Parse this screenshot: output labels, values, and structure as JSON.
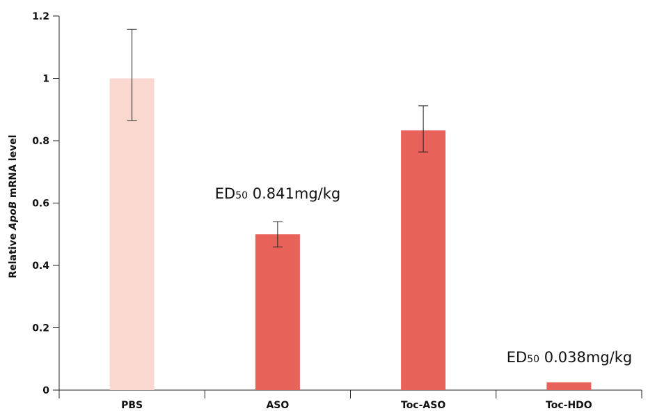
{
  "chart_data": {
    "type": "bar",
    "categories": [
      "PBS",
      "ASO",
      "Toc-ASO",
      "Toc-HDO"
    ],
    "values": [
      1.0,
      0.5,
      0.833,
      0.025
    ],
    "error": [
      [
        0.865,
        1.157
      ],
      [
        0.459,
        0.54
      ],
      [
        0.764,
        0.912
      ],
      [
        null,
        null
      ]
    ],
    "colors": [
      "#fad7cf",
      "#e9625a",
      "#e9625a",
      "#e9625a"
    ],
    "ylabel": {
      "prefix": "Relative ",
      "italic": "ApoB",
      "suffix": " mRNA level"
    },
    "xlabel": "",
    "ylim": [
      0,
      1.2
    ],
    "yticks": [
      {
        "v": 0,
        "label": "0"
      },
      {
        "v": 0.2,
        "label": "0.2"
      },
      {
        "v": 0.4,
        "label": "0.4"
      },
      {
        "v": 0.6,
        "label": "0.6"
      },
      {
        "v": 0.8,
        "label": "0.8"
      },
      {
        "v": 1.0,
        "label": "1"
      },
      {
        "v": 1.2,
        "label": "1.2"
      }
    ],
    "annotations": [
      {
        "category": "ASO",
        "prefix": "ED",
        "sub": "50",
        "text": " 0.841mg/kg"
      },
      {
        "category": "Toc-HDO",
        "prefix": "ED",
        "sub": "50",
        "text": " 0.038mg/kg"
      }
    ],
    "grid": false,
    "legend": "none"
  }
}
